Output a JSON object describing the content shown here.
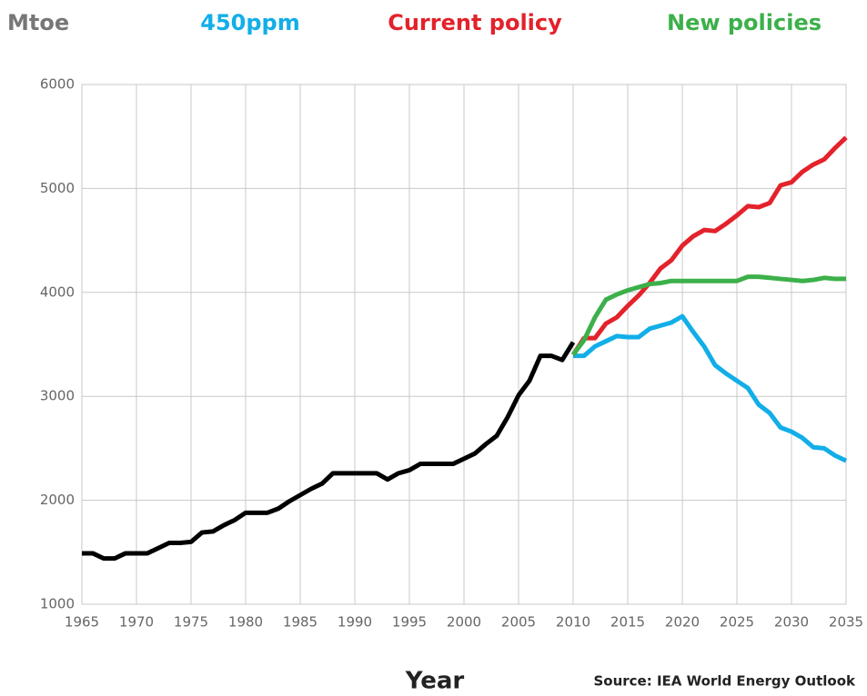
{
  "chart_data": {
    "type": "line",
    "ylabel": "Mtoe",
    "xlabel": "Year",
    "source": "Source: IEA World Energy Outlook",
    "xlim": [
      1965,
      2035
    ],
    "xticks": [
      1965,
      1970,
      1975,
      1980,
      1985,
      1990,
      1995,
      2000,
      2005,
      2010,
      2015,
      2020,
      2025,
      2030,
      2035
    ],
    "ylim": [
      1000,
      6000
    ],
    "yticks": [
      1000,
      2000,
      3000,
      4000,
      5000,
      6000
    ],
    "grid": true,
    "legend": "top",
    "series": [
      {
        "color": "#000000",
        "x": [
          1965,
          1966,
          1967,
          1968,
          1969,
          1970,
          1971,
          1972,
          1973,
          1974,
          1975,
          1976,
          1977,
          1978,
          1979,
          1980,
          1981,
          1982,
          1983,
          1984,
          1985,
          1986,
          1987,
          1988,
          1989,
          1990,
          1991,
          1992,
          1993,
          1994,
          1995,
          1996,
          1997,
          1998,
          1999,
          2000,
          2001,
          2002,
          2003,
          2004,
          2005,
          2006,
          2007,
          2008,
          2009,
          2010
        ],
        "values": [
          1490,
          1490,
          1440,
          1440,
          1490,
          1490,
          1490,
          1540,
          1590,
          1590,
          1600,
          1690,
          1700,
          1760,
          1810,
          1880,
          1880,
          1880,
          1920,
          1990,
          2050,
          2110,
          2160,
          2260,
          2260,
          2260,
          2260,
          2260,
          2200,
          2260,
          2290,
          2350,
          2350,
          2350,
          2350,
          2400,
          2450,
          2540,
          2620,
          2800,
          3010,
          3150,
          3390,
          3390,
          3350,
          3520
        ]
      },
      {
        "name": "450ppm",
        "color": "#12aee8",
        "x": [
          2010,
          2011,
          2012,
          2013,
          2014,
          2015,
          2016,
          2017,
          2018,
          2019,
          2020,
          2021,
          2022,
          2023,
          2024,
          2025,
          2026,
          2027,
          2028,
          2029,
          2030,
          2031,
          2032,
          2033,
          2034,
          2035
        ],
        "values": [
          3390,
          3390,
          3480,
          3530,
          3580,
          3570,
          3570,
          3650,
          3680,
          3710,
          3770,
          3620,
          3480,
          3300,
          3220,
          3150,
          3080,
          2920,
          2840,
          2700,
          2660,
          2600,
          2510,
          2500,
          2430,
          2380
        ]
      },
      {
        "name": "Current policy",
        "color": "#e3222b",
        "x": [
          2010,
          2011,
          2012,
          2013,
          2014,
          2015,
          2016,
          2017,
          2018,
          2019,
          2020,
          2021,
          2022,
          2023,
          2024,
          2025,
          2026,
          2027,
          2028,
          2029,
          2030,
          2031,
          2032,
          2033,
          2034,
          2035
        ],
        "values": [
          3400,
          3560,
          3560,
          3700,
          3760,
          3870,
          3970,
          4090,
          4230,
          4310,
          4450,
          4540,
          4600,
          4590,
          4660,
          4740,
          4830,
          4820,
          4860,
          5030,
          5060,
          5160,
          5230,
          5280,
          5390,
          5490
        ]
      },
      {
        "name": "New policies",
        "color": "#3cb04a",
        "x": [
          2010,
          2011,
          2012,
          2013,
          2014,
          2015,
          2016,
          2017,
          2018,
          2019,
          2020,
          2021,
          2022,
          2023,
          2024,
          2025,
          2026,
          2027,
          2028,
          2029,
          2030,
          2031,
          2032,
          2033,
          2034,
          2035
        ],
        "values": [
          3400,
          3540,
          3760,
          3930,
          3980,
          4020,
          4050,
          4080,
          4090,
          4110,
          4110,
          4110,
          4110,
          4110,
          4110,
          4110,
          4150,
          4150,
          4140,
          4130,
          4120,
          4110,
          4120,
          4140,
          4130,
          4130
        ]
      }
    ]
  }
}
